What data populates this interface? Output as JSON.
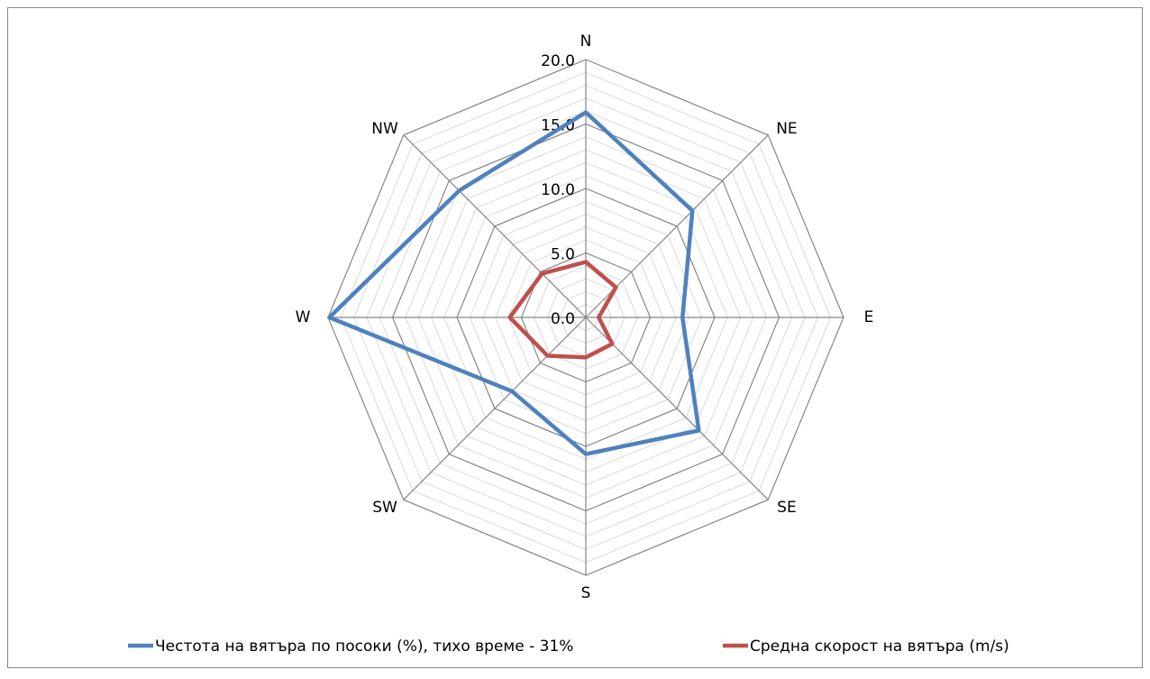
{
  "chart_data": {
    "type": "radar",
    "categories": [
      "N",
      "NE",
      "E",
      "SE",
      "S",
      "SW",
      "W",
      "NW"
    ],
    "series": [
      {
        "name": "Честота на вятъра по посоки (%), тихо време - 31%",
        "color": "#4f81bd",
        "values": [
          15.9,
          11.7,
          7.5,
          12.4,
          10.6,
          8.1,
          19.9,
          13.9
        ]
      },
      {
        "name": "Средна скорост на вятъра (m/s)",
        "color": "#c0504d",
        "values": [
          4.3,
          3.3,
          1.0,
          2.9,
          3.1,
          4.2,
          5.9,
          4.8
        ]
      }
    ],
    "ylim": [
      0,
      20
    ],
    "yticks": [
      {
        "value": 0,
        "label": "0.0"
      },
      {
        "value": 5,
        "label": "5.0"
      },
      {
        "value": 10,
        "label": "10.0"
      },
      {
        "value": 15,
        "label": "15.0"
      },
      {
        "value": 20,
        "label": "20.0"
      }
    ],
    "minor_yticks": [
      1,
      2,
      3,
      4,
      6,
      7,
      8,
      9,
      11,
      12,
      13,
      14,
      16,
      17,
      18,
      19
    ],
    "grid": true,
    "legend": "bottom"
  }
}
